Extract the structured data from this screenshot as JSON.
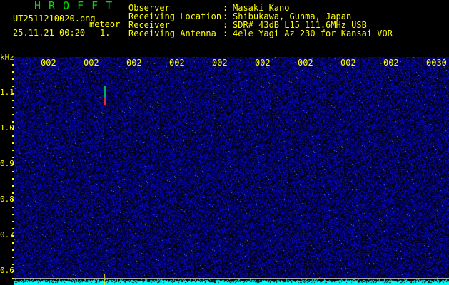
{
  "header": {
    "app_title": "HROFFT",
    "filename": "UT2511210020.png",
    "mode": "meteor",
    "datetime": "25.11.21 00:20",
    "index": "1.",
    "info": [
      {
        "label": "Observer",
        "value": "Masaki Kano"
      },
      {
        "label": "Receiving Location",
        "value": "Shibukawa, Gunma, Japan"
      },
      {
        "label": "Receiver",
        "value": "SDR# 43dB L15 111.6MHz USB"
      },
      {
        "label": "Receiving Antenna",
        "value": "4ele Yagi Az 230 for Kansai VOR"
      }
    ]
  },
  "axis": {
    "y_unit": "kHz",
    "y_ticks": [
      "1.1",
      "1.0",
      "0.9",
      "0.8",
      "0.7",
      "0.6"
    ],
    "x_ticks": [
      "002",
      "002",
      "002",
      "002",
      "002",
      "002",
      "002",
      "002",
      "002",
      "0030"
    ]
  },
  "colors": {
    "text": "#ffff00",
    "title": "#00dd00",
    "noise": "#0000aa",
    "spectrum": "#00ffff"
  }
}
